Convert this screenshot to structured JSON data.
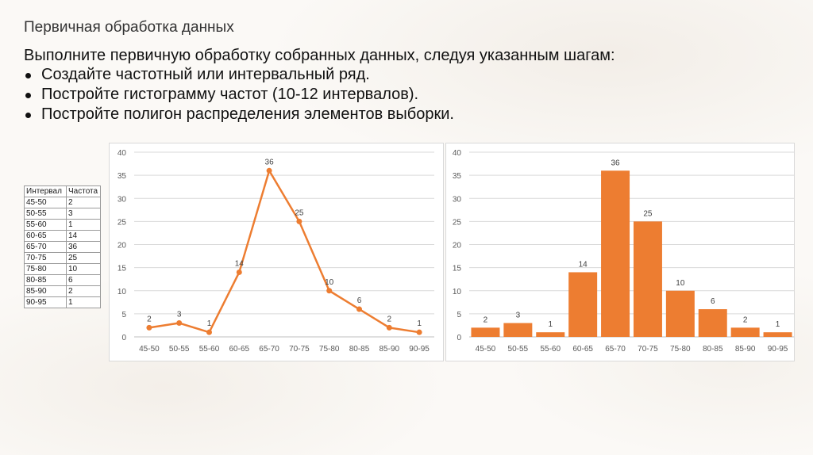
{
  "slide": {
    "title": "Первичная обработка данных",
    "instruction": "Выполните первичную обработку собранных данных, следуя указанным шагам:",
    "bullets": [
      "Создайте частотный или интервальный ряд.",
      "Постройте гистограмму частот (10-12 интервалов).",
      "Постройте полигон распределения элементов выборки."
    ]
  },
  "table": {
    "headers": [
      "Интервал",
      "Частота"
    ],
    "rows": [
      [
        "45-50",
        "2"
      ],
      [
        "50-55",
        "3"
      ],
      [
        "55-60",
        "1"
      ],
      [
        "60-65",
        "14"
      ],
      [
        "65-70",
        "36"
      ],
      [
        "70-75",
        "25"
      ],
      [
        "75-80",
        "10"
      ],
      [
        "80-85",
        "6"
      ],
      [
        "85-90",
        "2"
      ],
      [
        "90-95",
        "1"
      ]
    ]
  },
  "chart_data": [
    {
      "type": "line",
      "categories": [
        "45-50",
        "50-55",
        "55-60",
        "60-65",
        "65-70",
        "70-75",
        "75-80",
        "80-85",
        "85-90",
        "90-95"
      ],
      "values": [
        2,
        3,
        1,
        14,
        36,
        25,
        10,
        6,
        2,
        1
      ],
      "ylim": [
        0,
        40
      ],
      "yticks": [
        0,
        5,
        10,
        15,
        20,
        25,
        30,
        35,
        40
      ],
      "grid": true,
      "color": "#ED7D31",
      "data_labels": true
    },
    {
      "type": "bar",
      "categories": [
        "45-50",
        "50-55",
        "55-60",
        "60-65",
        "65-70",
        "70-75",
        "75-80",
        "80-85",
        "85-90",
        "90-95"
      ],
      "values": [
        2,
        3,
        1,
        14,
        36,
        25,
        10,
        6,
        2,
        1
      ],
      "ylim": [
        0,
        40
      ],
      "yticks": [
        0,
        5,
        10,
        15,
        20,
        25,
        30,
        35,
        40
      ],
      "grid": true,
      "color": "#ED7D31",
      "data_labels": true
    }
  ]
}
